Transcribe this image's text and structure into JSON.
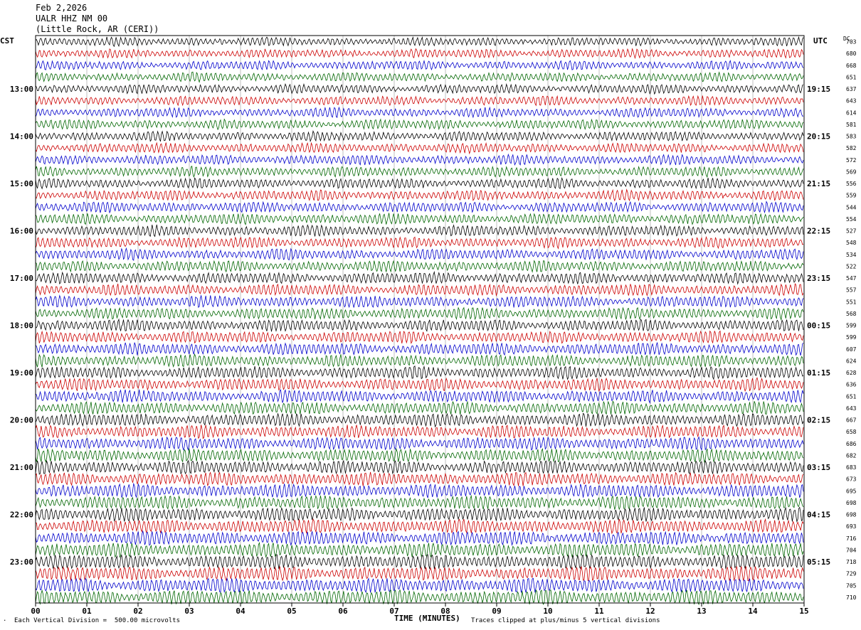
{
  "header": {
    "date": "Feb 2,2026",
    "station": "UALR HHZ NM 00",
    "location": "(Little Rock, AR (CERI))"
  },
  "left_tz": "CST",
  "right_tz": "UTC",
  "dc_label": "DC",
  "footer": {
    "scale": "Each Vertical Division =  500.00 microvolts",
    "clip": "Traces clipped at plus/minus 5 vertical divisions",
    "corner_mark": ".",
    "x_title": "TIME (MINUTES)"
  },
  "colors": {
    "black": "#000000",
    "red": "#cc0000",
    "blue": "#0000cc",
    "green": "#006600",
    "grid": "#999999"
  },
  "chart_data": {
    "type": "line",
    "title": "UALR HHZ NM 00",
    "xlabel": "TIME (MINUTES)",
    "xlim": [
      0,
      15
    ],
    "x_ticks": [
      "00",
      "01",
      "02",
      "03",
      "04",
      "05",
      "06",
      "07",
      "08",
      "09",
      "10",
      "11",
      "12",
      "13",
      "14",
      "15"
    ],
    "trace_minutes": 15,
    "trace_count": 48,
    "trace_color_cycle": [
      "black",
      "red",
      "blue",
      "green"
    ],
    "left_hour_labels": [
      "13:00",
      "14:00",
      "15:00",
      "16:00",
      "17:00",
      "18:00",
      "19:00",
      "20:00",
      "21:00",
      "22:00",
      "23:00"
    ],
    "right_hour_labels": [
      "19:15",
      "20:15",
      "21:15",
      "22:15",
      "23:15",
      "00:15",
      "01:15",
      "02:15",
      "03:15",
      "04:15",
      "05:15"
    ],
    "dc_offsets": [
      "703",
      "680",
      "668",
      "651",
      "637",
      "643",
      "614",
      "581",
      "583",
      "582",
      "572",
      "569",
      "556",
      "559",
      "544",
      "554",
      "527",
      "548",
      "534",
      "522",
      "547",
      "557",
      "551",
      "568",
      "599",
      "599",
      "607",
      "624",
      "628",
      "636",
      "651",
      "643",
      "667",
      "658",
      "686",
      "682",
      "683",
      "673",
      "695",
      "698",
      "698",
      "693",
      "716",
      "704",
      "718",
      "729",
      "705",
      "710"
    ]
  }
}
